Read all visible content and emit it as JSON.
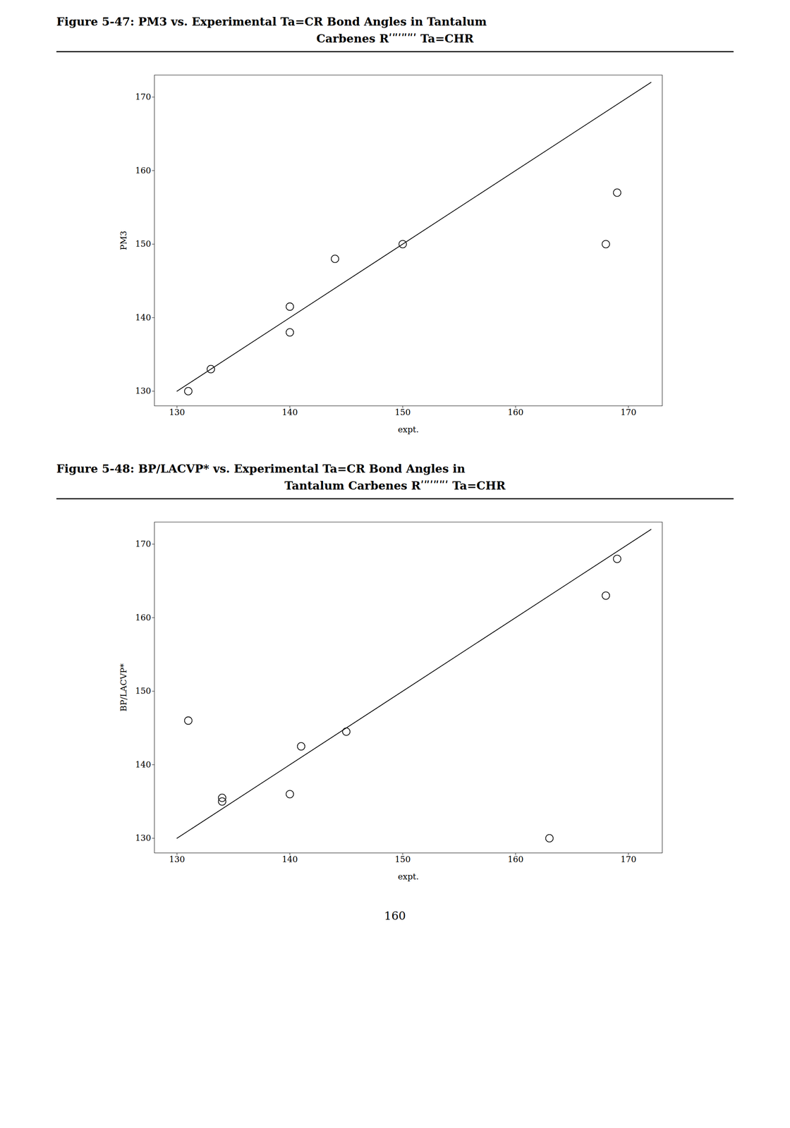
{
  "chart_data": [
    {
      "type": "scatter",
      "title": "Figure 5-47:   PM3 vs. Experimental Ta=CR Bond Angles in Tantalum",
      "subtitle": "Carbenes Rʹʺʹʺʺʹ Ta=CHR",
      "x_label": "expt.",
      "y_label": "PM3",
      "series": [
        {
          "type": "scatter",
          "marker": "circle",
          "color": "black",
          "x": [
            131,
            133,
            140,
            140,
            144,
            150,
            168,
            169
          ],
          "values": [
            130,
            133,
            141.5,
            138,
            148,
            150,
            150,
            157
          ]
        },
        {
          "type": "line",
          "line_style": "solid",
          "color": "black",
          "x": [
            130,
            172
          ],
          "values": [
            130,
            172
          ]
        }
      ],
      "xlim": [
        128,
        173
      ],
      "ylim": [
        128,
        173
      ],
      "xticks": [
        130,
        140,
        150,
        160,
        170
      ],
      "yticks": [
        130,
        140,
        150,
        160,
        170
      ],
      "grid": false
    },
    {
      "type": "scatter",
      "title": "Figure 5-48:   BP/LACVP* vs. Experimental Ta=CR Bond Angles in",
      "subtitle": "Tantalum Carbenes Rʹʺʹʺʺʹ Ta=CHR",
      "x_label": "expt.",
      "y_label": "BP/LACVP*",
      "series": [
        {
          "type": "scatter",
          "marker": "circle",
          "color": "black",
          "x": [
            131,
            134,
            134,
            140,
            141,
            145,
            163,
            168,
            169
          ],
          "values": [
            146,
            135.5,
            135,
            136,
            142.5,
            144.5,
            130,
            163,
            168
          ]
        },
        {
          "type": "line",
          "line_style": "solid",
          "color": "black",
          "x": [
            130,
            172
          ],
          "values": [
            130,
            172
          ]
        }
      ],
      "xlim": [
        128,
        173
      ],
      "ylim": [
        128,
        173
      ],
      "xticks": [
        130,
        140,
        150,
        160,
        170
      ],
      "yticks": [
        130,
        140,
        150,
        160,
        170
      ],
      "grid": false,
      "annotations": [
        "160"
      ]
    }
  ]
}
